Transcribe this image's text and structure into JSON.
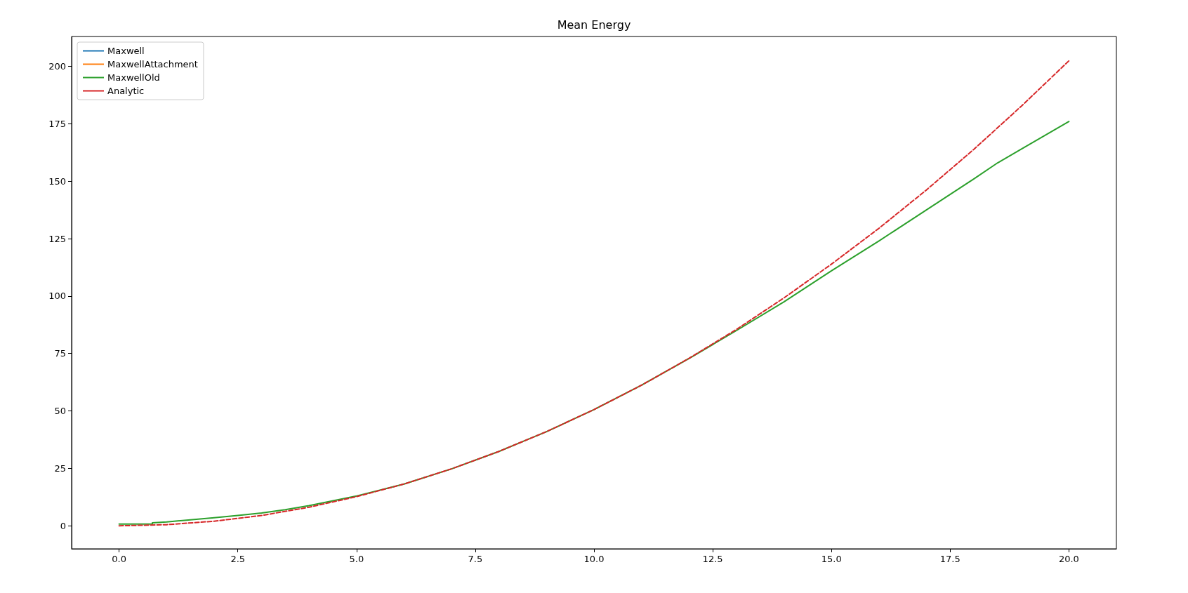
{
  "chart_data": {
    "type": "line",
    "title": "Mean Energy",
    "legend": "top left",
    "grid": false,
    "marker": "none",
    "xlim": [
      -1,
      21
    ],
    "ylim": [
      -10,
      213
    ],
    "xticks": [
      {
        "value": 0,
        "label": "0.0"
      },
      {
        "value": 2.5,
        "label": "2.5"
      },
      {
        "value": 5,
        "label": "5.0"
      },
      {
        "value": 7.5,
        "label": "7.5"
      },
      {
        "value": 10,
        "label": "10.0"
      },
      {
        "value": 12.5,
        "label": "12.5"
      },
      {
        "value": 15,
        "label": "15.0"
      },
      {
        "value": 17.5,
        "label": "17.5"
      },
      {
        "value": 20,
        "label": "20.0"
      }
    ],
    "yticks": [
      0,
      25,
      50,
      75,
      100,
      125,
      150,
      175,
      200
    ],
    "series": [
      {
        "name": "Maxwell",
        "color": "#1f77b4",
        "line_style": "solid"
      },
      {
        "name": "MaxwellAttachment",
        "color": "#ff7f0e",
        "line_style": "solid"
      },
      {
        "name": "MaxwellOld",
        "color": "#2ca02c",
        "line_style": "solid",
        "x": [
          0,
          0.7,
          0.7,
          1,
          1.5,
          2,
          2.5,
          3,
          3.5,
          4,
          5,
          6,
          7,
          8,
          9,
          10,
          11,
          12,
          13,
          14,
          15,
          16,
          17,
          18,
          18.5,
          19,
          20
        ],
        "values": [
          0.8,
          0.8,
          1.3,
          1.7,
          2.6,
          3.5,
          4.5,
          5.6,
          7,
          8.8,
          13,
          18.2,
          24.8,
          32.4,
          41,
          50.6,
          61.2,
          72.8,
          85,
          97.5,
          111,
          124,
          137.5,
          151,
          158,
          164,
          176
        ]
      },
      {
        "name": "Analytic",
        "color": "#d62728",
        "line_style": "dashed",
        "x": [
          0,
          1,
          2,
          3,
          4,
          5,
          6,
          7,
          8,
          9,
          10,
          11,
          12,
          13,
          14,
          15,
          16,
          17,
          18,
          19,
          20
        ],
        "values": [
          0,
          0.5,
          2,
          4.5,
          8.1,
          12.7,
          18.2,
          24.8,
          32.4,
          41,
          50.6,
          61.2,
          72.9,
          85.5,
          99.2,
          113.9,
          129.5,
          146.2,
          163.9,
          182.7,
          202.4
        ]
      }
    ]
  }
}
